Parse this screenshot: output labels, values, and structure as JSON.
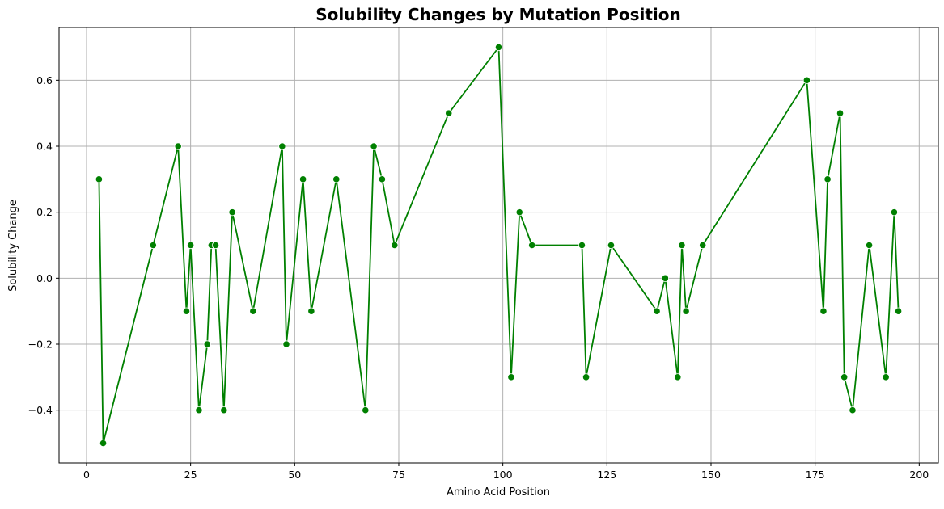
{
  "chart_data": {
    "type": "line",
    "title": "Solubility Changes by Mutation Position",
    "xlabel": "Amino Acid Position",
    "ylabel": "Solubility Change",
    "xlim": [
      -6.6,
      204.6
    ],
    "ylim": [
      -0.56,
      0.76
    ],
    "xticks": [
      0,
      25,
      50,
      75,
      100,
      125,
      150,
      175,
      200
    ],
    "xtick_labels": [
      "0",
      "25",
      "50",
      "75",
      "100",
      "125",
      "150",
      "175",
      "200"
    ],
    "yticks": [
      -0.4,
      -0.2,
      0.0,
      0.2,
      0.4,
      0.6
    ],
    "ytick_labels": [
      "−0.4",
      "−0.2",
      "0.0",
      "0.2",
      "0.4",
      "0.6"
    ],
    "grid": true,
    "series": [
      {
        "color": "#008000",
        "marker": "circle",
        "x": [
          3,
          4,
          16,
          22,
          24,
          25,
          27,
          29,
          30,
          31,
          33,
          35,
          40,
          47,
          48,
          52,
          54,
          60,
          67,
          69,
          71,
          74,
          87,
          99,
          102,
          104,
          107,
          119,
          120,
          126,
          137,
          139,
          142,
          143,
          144,
          148,
          173,
          177,
          178,
          181,
          182,
          184,
          188,
          192,
          194,
          195
        ],
        "y": [
          0.3,
          -0.5,
          0.1,
          0.4,
          -0.1,
          0.1,
          -0.4,
          -0.2,
          0.1,
          0.1,
          -0.4,
          0.2,
          -0.1,
          0.4,
          -0.2,
          0.3,
          -0.1,
          0.3,
          -0.4,
          0.4,
          0.3,
          0.1,
          0.5,
          0.7,
          -0.3,
          0.2,
          0.1,
          0.1,
          -0.3,
          0.1,
          -0.1,
          0.0,
          -0.3,
          0.1,
          -0.1,
          0.1,
          0.6,
          -0.1,
          0.3,
          0.5,
          -0.3,
          -0.4,
          0.1,
          -0.3,
          0.2,
          -0.1
        ]
      }
    ]
  }
}
